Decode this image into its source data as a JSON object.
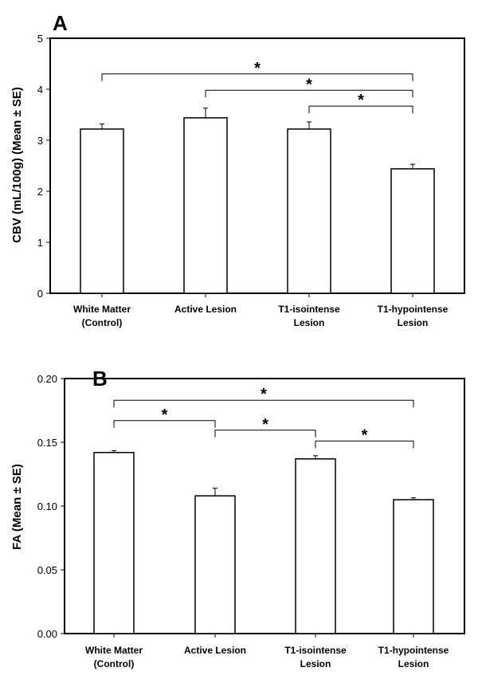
{
  "chart_data": [
    {
      "panel": "A",
      "type": "bar",
      "categories": [
        [
          "White Matter",
          "(Control)"
        ],
        [
          "Active Lesion"
        ],
        [
          "T1-isointense",
          "Lesion"
        ],
        [
          "T1-hypointense",
          "Lesion"
        ]
      ],
      "values": [
        3.22,
        3.44,
        3.22,
        2.44
      ],
      "errors": [
        0.1,
        0.19,
        0.14,
        0.09
      ],
      "ylabel": "CBV (mL/100g) (Mean ± SE)",
      "xlabel": "",
      "ylim": [
        0,
        5
      ],
      "yticks": [
        0,
        1,
        2,
        3,
        4,
        5
      ],
      "ytick_labels": [
        "0",
        "1",
        "2",
        "3",
        "4",
        "5"
      ],
      "grid": false,
      "significance": [
        {
          "from": 0,
          "to": 3,
          "label": "*",
          "level": 4.3
        },
        {
          "from": 1,
          "to": 3,
          "label": "*",
          "level": 3.98
        },
        {
          "from": 2,
          "to": 3,
          "label": "*",
          "level": 3.67
        }
      ]
    },
    {
      "panel": "B",
      "type": "bar",
      "categories": [
        [
          "White Matter",
          "(Control)"
        ],
        [
          "Active Lesion"
        ],
        [
          "T1-isointense",
          "Lesion"
        ],
        [
          "T1-hypointense",
          "Lesion"
        ]
      ],
      "values": [
        0.142,
        0.108,
        0.137,
        0.105
      ],
      "errors": [
        0.0015,
        0.006,
        0.0025,
        0.0015
      ],
      "ylabel": "FA (Mean ± SE)",
      "xlabel": "",
      "ylim": [
        0,
        0.2
      ],
      "yticks": [
        0,
        0.05,
        0.1,
        0.15,
        0.2
      ],
      "ytick_labels": [
        "0.00",
        "0.05",
        "0.10",
        "0.15",
        "0.20"
      ],
      "grid": false,
      "significance": [
        {
          "from": 0,
          "to": 3,
          "label": "*",
          "level": 0.183
        },
        {
          "from": 0,
          "to": 1,
          "label": "*",
          "level": 0.167
        },
        {
          "from": 1,
          "to": 2,
          "label": "*",
          "level": 0.1595
        },
        {
          "from": 2,
          "to": 3,
          "label": "*",
          "level": 0.151
        }
      ]
    }
  ]
}
